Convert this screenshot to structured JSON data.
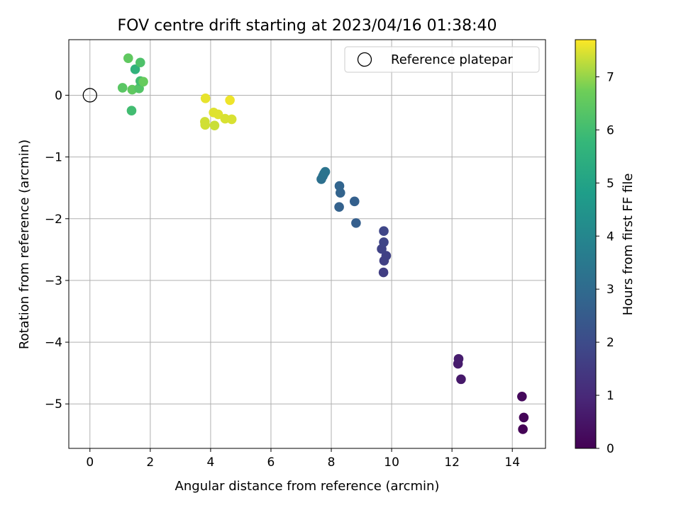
{
  "chart_data": {
    "type": "scatter",
    "title": "FOV centre drift starting at 2023/04/16 01:38:40",
    "xlabel": "Angular distance from reference (arcmin)",
    "ylabel": "Rotation from reference (arcmin)",
    "xlim": [
      -0.7,
      15.1
    ],
    "ylim": [
      -5.72,
      0.9
    ],
    "xticks": [
      0,
      2,
      4,
      6,
      8,
      10,
      12,
      14
    ],
    "xtick_labels": [
      "0",
      "2",
      "4",
      "6",
      "8",
      "10",
      "12",
      "14"
    ],
    "yticks": [
      0,
      -1,
      -2,
      -3,
      -4,
      -5
    ],
    "ytick_labels": [
      "0",
      "−1",
      "−2",
      "−3",
      "−4",
      "−5"
    ],
    "grid": true,
    "legend": {
      "position": "top-right",
      "entries": [
        "Reference platepar"
      ]
    },
    "reference_point": {
      "x": 0,
      "y": 0,
      "label": "Reference platepar"
    },
    "colorbar": {
      "label": "Hours from first FF file",
      "colormap": "viridis",
      "range": [
        0,
        7.7
      ],
      "ticks": [
        0,
        1,
        2,
        3,
        4,
        5,
        6,
        7
      ],
      "tick_labels": [
        "0",
        "1",
        "2",
        "3",
        "4",
        "5",
        "6",
        "7"
      ]
    },
    "points": [
      {
        "x": 14.35,
        "y": -5.41,
        "hours": 0.05
      },
      {
        "x": 14.38,
        "y": -5.22,
        "hours": 0.1
      },
      {
        "x": 14.32,
        "y": -4.88,
        "hours": 0.2
      },
      {
        "x": 12.3,
        "y": -4.6,
        "hours": 0.6
      },
      {
        "x": 12.2,
        "y": -4.35,
        "hours": 0.65
      },
      {
        "x": 12.22,
        "y": -4.27,
        "hours": 0.7
      },
      {
        "x": 9.73,
        "y": -2.87,
        "hours": 1.6
      },
      {
        "x": 9.75,
        "y": -2.68,
        "hours": 1.65
      },
      {
        "x": 9.82,
        "y": -2.6,
        "hours": 1.7
      },
      {
        "x": 9.67,
        "y": -2.49,
        "hours": 1.75
      },
      {
        "x": 9.74,
        "y": -2.38,
        "hours": 1.8
      },
      {
        "x": 9.74,
        "y": -2.2,
        "hours": 1.85
      },
      {
        "x": 8.82,
        "y": -2.07,
        "hours": 2.6
      },
      {
        "x": 8.77,
        "y": -1.72,
        "hours": 2.65
      },
      {
        "x": 8.26,
        "y": -1.81,
        "hours": 2.7
      },
      {
        "x": 8.3,
        "y": -1.58,
        "hours": 2.75
      },
      {
        "x": 8.27,
        "y": -1.47,
        "hours": 2.8
      },
      {
        "x": 7.67,
        "y": -1.36,
        "hours": 3.2
      },
      {
        "x": 7.72,
        "y": -1.31,
        "hours": 3.25
      },
      {
        "x": 7.76,
        "y": -1.27,
        "hours": 3.3
      },
      {
        "x": 7.8,
        "y": -1.24,
        "hours": 3.35
      },
      {
        "x": 1.38,
        "y": -0.25,
        "hours": 6.0
      },
      {
        "x": 1.08,
        "y": 0.12,
        "hours": 6.4
      },
      {
        "x": 1.4,
        "y": 0.09,
        "hours": 6.5
      },
      {
        "x": 1.63,
        "y": 0.11,
        "hours": 6.3
      },
      {
        "x": 1.67,
        "y": 0.23,
        "hours": 6.0
      },
      {
        "x": 1.77,
        "y": 0.22,
        "hours": 6.6
      },
      {
        "x": 1.5,
        "y": 0.42,
        "hours": 5.6
      },
      {
        "x": 1.67,
        "y": 0.53,
        "hours": 6.2
      },
      {
        "x": 1.27,
        "y": 0.6,
        "hours": 6.5
      },
      {
        "x": 3.83,
        "y": -0.05,
        "hours": 7.55
      },
      {
        "x": 4.64,
        "y": -0.08,
        "hours": 7.6
      },
      {
        "x": 4.1,
        "y": -0.28,
        "hours": 7.5
      },
      {
        "x": 4.25,
        "y": -0.31,
        "hours": 7.5
      },
      {
        "x": 4.48,
        "y": -0.38,
        "hours": 7.45
      },
      {
        "x": 4.7,
        "y": -0.39,
        "hours": 7.45
      },
      {
        "x": 3.81,
        "y": -0.43,
        "hours": 7.4
      },
      {
        "x": 3.82,
        "y": -0.48,
        "hours": 7.4
      },
      {
        "x": 4.13,
        "y": -0.49,
        "hours": 7.35
      }
    ]
  }
}
